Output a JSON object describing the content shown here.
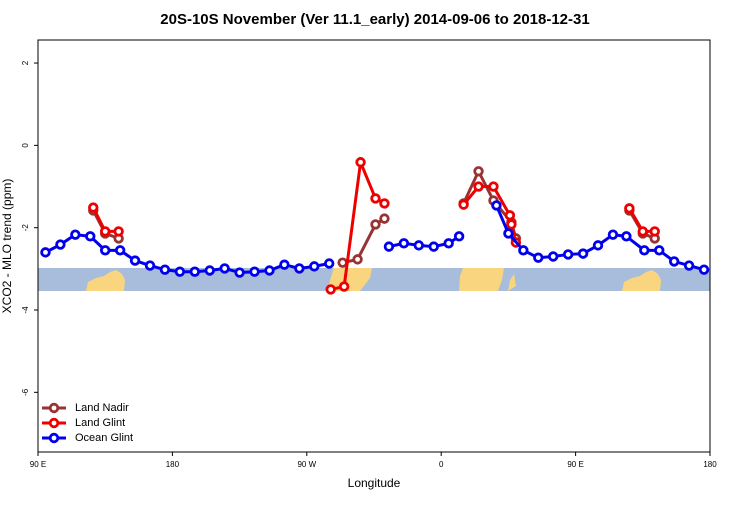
{
  "chart_data": {
    "type": "line",
    "title": "20S-10S November (Ver 11.1_early)   2014-09-06 to 2018-12-31",
    "x_label": "Longitude",
    "y_label": "XCO2 - MLO trend (ppm)",
    "xlim": [
      90,
      540
    ],
    "ylim": [
      -7.45,
      2.56
    ],
    "xticks": [
      {
        "value": 90,
        "label": "90 E"
      },
      180,
      {
        "value": 270,
        "label": "90 W"
      },
      {
        "value": 360,
        "label": "0"
      },
      {
        "value": 450,
        "label": "90 E"
      },
      {
        "value": 540,
        "label": "180"
      }
    ],
    "yticks": [
      -6,
      -4,
      -2,
      0,
      2
    ],
    "legend": "bottom-left",
    "series": [
      {
        "name": "Land Nadir",
        "color": "#993333",
        "x": [
          127,
          135,
          144,
          null,
          294,
          304,
          316,
          322,
          null,
          375,
          385,
          395,
          407,
          410,
          null,
          486,
          495,
          503
        ],
        "values": [
          -1.58,
          -2.14,
          -2.26,
          null,
          -2.85,
          -2.77,
          -1.92,
          -1.78,
          null,
          -1.41,
          -0.63,
          -1.34,
          -1.87,
          -2.26,
          null,
          -1.58,
          -2.14,
          -2.26
        ]
      },
      {
        "name": "Land Glint",
        "color": "#ee0000",
        "x": [
          127,
          135,
          144,
          null,
          286,
          295,
          306,
          316,
          322,
          null,
          375,
          385,
          395,
          406,
          407,
          410,
          null,
          486,
          495,
          503
        ],
        "values": [
          -1.51,
          -2.09,
          -2.09,
          null,
          -3.5,
          -3.43,
          -0.41,
          -1.29,
          -1.41,
          null,
          -1.44,
          -1.0,
          -1.0,
          -1.7,
          -1.92,
          -2.36,
          null,
          -1.53,
          -2.09,
          -2.09
        ]
      },
      {
        "name": "Ocean Glint",
        "color": "#0000ee",
        "x": [
          95,
          105,
          115,
          125,
          135,
          145,
          155,
          165,
          175,
          185,
          195,
          205,
          215,
          225,
          235,
          245,
          255,
          265,
          275,
          285,
          null,
          325,
          335,
          345,
          355,
          365,
          372,
          null,
          397,
          405,
          415,
          425,
          435,
          445,
          455,
          465,
          475,
          484,
          496,
          506,
          516,
          526,
          536
        ],
        "values": [
          -2.6,
          -2.41,
          -2.17,
          -2.21,
          -2.55,
          -2.55,
          -2.8,
          -2.92,
          -3.02,
          -3.07,
          -3.07,
          -3.04,
          -2.99,
          -3.09,
          -3.07,
          -3.04,
          -2.9,
          -2.99,
          -2.94,
          -2.87,
          null,
          -2.46,
          -2.38,
          -2.43,
          -2.46,
          -2.38,
          -2.21,
          null,
          -1.46,
          -2.14,
          -2.55,
          -2.73,
          -2.7,
          -2.65,
          -2.63,
          -2.43,
          -2.17,
          -2.21,
          -2.55,
          -2.55,
          -2.82,
          -2.92,
          -3.02
        ]
      }
    ]
  }
}
